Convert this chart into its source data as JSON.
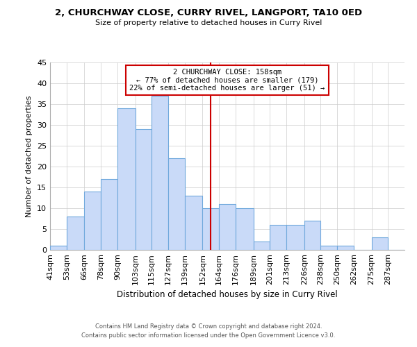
{
  "title": "2, CHURCHWAY CLOSE, CURRY RIVEL, LANGPORT, TA10 0ED",
  "subtitle": "Size of property relative to detached houses in Curry Rivel",
  "xlabel": "Distribution of detached houses by size in Curry Rivel",
  "ylabel": "Number of detached properties",
  "bin_labels": [
    "41sqm",
    "53sqm",
    "66sqm",
    "78sqm",
    "90sqm",
    "103sqm",
    "115sqm",
    "127sqm",
    "139sqm",
    "152sqm",
    "164sqm",
    "176sqm",
    "189sqm",
    "201sqm",
    "213sqm",
    "226sqm",
    "238sqm",
    "250sqm",
    "262sqm",
    "275sqm",
    "287sqm"
  ],
  "bin_edges": [
    41,
    53,
    66,
    78,
    90,
    103,
    115,
    127,
    139,
    152,
    164,
    176,
    189,
    201,
    213,
    226,
    238,
    250,
    262,
    275,
    287,
    299
  ],
  "counts": [
    1,
    8,
    14,
    17,
    34,
    29,
    37,
    22,
    13,
    10,
    11,
    10,
    2,
    6,
    6,
    7,
    1,
    1,
    0,
    3,
    0
  ],
  "bar_color": "#c9daf8",
  "bar_edge_color": "#6fa8dc",
  "property_line_x": 158,
  "ylim": [
    0,
    45
  ],
  "annotation_title": "2 CHURCHWAY CLOSE: 158sqm",
  "annotation_line1": "← 77% of detached houses are smaller (179)",
  "annotation_line2": "22% of semi-detached houses are larger (51) →",
  "annotation_box_color": "#ffffff",
  "annotation_box_edge_color": "#cc0000",
  "property_line_color": "#cc0000",
  "footer_line1": "Contains HM Land Registry data © Crown copyright and database right 2024.",
  "footer_line2": "Contains public sector information licensed under the Open Government Licence v3.0.",
  "background_color": "#ffffff",
  "grid_color": "#cccccc"
}
